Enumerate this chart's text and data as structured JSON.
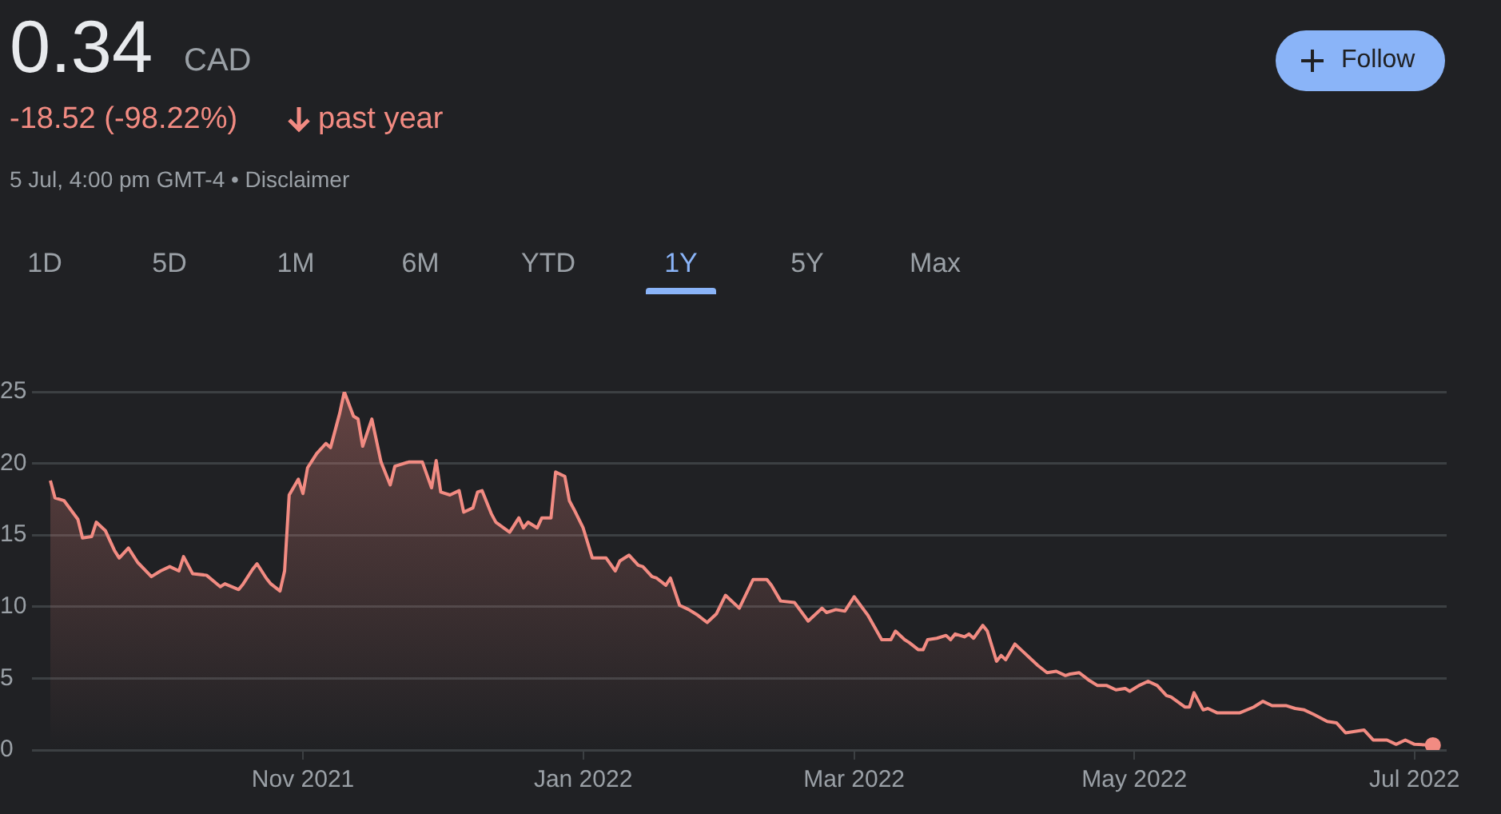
{
  "chart_data": {
    "type": "area",
    "title": "0.34",
    "annotations": [
      "CAD",
      "-18.52 (-98.22%)",
      "past year",
      "5 Jul, 4:00 pm GMT-4 • Disclaimer",
      "Follow",
      "1D",
      "5D",
      "1M",
      "6M",
      "YTD",
      "1Y",
      "5Y",
      "Max"
    ],
    "x": [
      "2021-09-07",
      "2021-09-08",
      "2021-09-10",
      "2021-09-13",
      "2021-09-14",
      "2021-09-16",
      "2021-09-17",
      "2021-09-19",
      "2021-09-21",
      "2021-09-22",
      "2021-09-24",
      "2021-09-26",
      "2021-09-29",
      "2021-10-01",
      "2021-10-03",
      "2021-10-05",
      "2021-10-06",
      "2021-10-08",
      "2021-10-11",
      "2021-10-14",
      "2021-10-15",
      "2021-10-18",
      "2021-10-19",
      "2021-10-21",
      "2021-10-22",
      "2021-10-24",
      "2021-10-25",
      "2021-10-27",
      "2021-10-28",
      "2021-10-29",
      "2021-10-31",
      "2021-11-01",
      "2021-11-02",
      "2021-11-04",
      "2021-11-06",
      "2021-11-07",
      "2021-11-09",
      "2021-11-10",
      "2021-11-12",
      "2021-11-13",
      "2021-11-14",
      "2021-11-16",
      "2021-11-18",
      "2021-11-20",
      "2021-11-21",
      "2021-11-24",
      "2021-11-27",
      "2021-11-29",
      "2021-11-30",
      "2021-12-01",
      "2021-12-03",
      "2021-12-05",
      "2021-12-06",
      "2021-12-08",
      "2021-12-09",
      "2021-12-10",
      "2021-12-12",
      "2021-12-13",
      "2021-12-16",
      "2021-12-18",
      "2021-12-19",
      "2021-12-20",
      "2021-12-22",
      "2021-12-23",
      "2021-12-25",
      "2021-12-26",
      "2021-12-28",
      "2021-12-29",
      "2021-12-30",
      "2022-01-01",
      "2022-01-03",
      "2022-01-06",
      "2022-01-08",
      "2022-01-09",
      "2022-01-11",
      "2022-01-13",
      "2022-01-14",
      "2022-01-16",
      "2022-01-17",
      "2022-01-19",
      "2022-01-20",
      "2022-01-22",
      "2022-01-24",
      "2022-01-26",
      "2022-01-28",
      "2022-01-30",
      "2022-02-01",
      "2022-02-04",
      "2022-02-07",
      "2022-02-09",
      "2022-02-10",
      "2022-02-11",
      "2022-02-13",
      "2022-02-16",
      "2022-02-19",
      "2022-02-22",
      "2022-02-23",
      "2022-02-25",
      "2022-02-27",
      "2022-03-01",
      "2022-03-04",
      "2022-03-07",
      "2022-03-09",
      "2022-03-10",
      "2022-03-12",
      "2022-03-13",
      "2022-03-15",
      "2022-03-16",
      "2022-03-17",
      "2022-03-19",
      "2022-03-21",
      "2022-03-22",
      "2022-03-23",
      "2022-03-25",
      "2022-03-26",
      "2022-03-27",
      "2022-03-29",
      "2022-03-30",
      "2022-04-01",
      "2022-04-02",
      "2022-04-03",
      "2022-04-05",
      "2022-04-07",
      "2022-04-08",
      "2022-04-10",
      "2022-04-12",
      "2022-04-14",
      "2022-04-16",
      "2022-04-17",
      "2022-04-19",
      "2022-04-21",
      "2022-04-23",
      "2022-04-25",
      "2022-04-27",
      "2022-04-29",
      "2022-04-30",
      "2022-05-02",
      "2022-05-04",
      "2022-05-06",
      "2022-05-08",
      "2022-05-09",
      "2022-05-12",
      "2022-05-13",
      "2022-05-14",
      "2022-05-16",
      "2022-05-17",
      "2022-05-19",
      "2022-05-24",
      "2022-05-27",
      "2022-05-29",
      "2022-05-31",
      "2022-06-03",
      "2022-06-05",
      "2022-06-07",
      "2022-06-09",
      "2022-06-12",
      "2022-06-14",
      "2022-06-16",
      "2022-06-20",
      "2022-06-22",
      "2022-06-25",
      "2022-06-27",
      "2022-06-29",
      "2022-07-01",
      "2022-07-05"
    ],
    "series": [
      {
        "color": "#f28b82",
        "values": [
          18.8,
          17.6,
          17.4,
          16.1,
          14.8,
          14.9,
          15.9,
          15.3,
          13.9,
          13.4,
          14.1,
          13.1,
          12.1,
          12.5,
          12.8,
          12.5,
          13.5,
          12.3,
          12.2,
          11.4,
          11.6,
          11.2,
          11.6,
          12.6,
          13.0,
          12.0,
          11.6,
          11.1,
          12.5,
          17.8,
          18.9,
          17.9,
          19.7,
          20.7,
          21.4,
          21.1,
          23.5,
          25,
          23.3,
          23.1,
          21.2,
          23.1,
          20.1,
          18.5,
          19.8,
          20.1,
          20.1,
          18.3,
          20.2,
          18.0,
          17.8,
          18.1,
          16.6,
          16.9,
          18.0,
          18.1,
          16.5,
          15.9,
          15.2,
          16.2,
          15.5,
          15.9,
          15.5,
          16.2,
          16.2,
          19.4,
          19.1,
          17.4,
          16.8,
          15.5,
          13.4,
          13.4,
          12.5,
          13.2,
          13.6,
          12.9,
          12.8,
          12.1,
          12.0,
          11.5,
          12.0,
          10.1,
          9.8,
          9.4,
          8.9,
          9.5,
          10.8,
          9.9,
          11.9,
          11.9,
          11.9,
          11.5,
          10.4,
          10.3,
          9.0,
          9.9,
          9.6,
          9.8,
          9.7,
          10.7,
          9.4,
          7.7,
          7.7,
          8.3,
          7.7,
          7.5,
          7.0,
          7.0,
          7.7,
          7.8,
          8.0,
          7.7,
          8.1,
          7.9,
          8.1,
          7.8,
          8.7,
          8.3,
          6.2,
          6.6,
          6.3,
          7.4,
          6.8,
          6.5,
          5.9,
          5.4,
          5.5,
          5.2,
          5.3,
          5.4,
          4.9,
          4.5,
          4.5,
          4.2,
          4.3,
          4.1,
          4.5,
          4.8,
          4.5,
          3.8,
          3.7,
          3.0,
          3.0,
          4.0,
          2.8,
          2.9,
          2.6,
          2.6,
          3.0,
          3.4,
          3.1,
          3.1,
          2.9,
          2.8,
          2.5,
          2.0,
          1.9,
          1.2,
          1.4,
          0.7,
          0.7,
          0.4,
          0.7,
          0.4,
          0.34
        ]
      }
    ],
    "xlim": [
      "2021-09-03",
      "2022-07-08"
    ],
    "xticks": [
      {
        "value": "2021-11-01",
        "label": "Nov 2021"
      },
      {
        "value": "2022-01-01",
        "label": "Jan 2022"
      },
      {
        "value": "2022-03-01",
        "label": "Mar 2022"
      },
      {
        "value": "2022-05-01",
        "label": "May 2022"
      },
      {
        "value": "2022-07-01",
        "label": "Jul 2022"
      }
    ],
    "ylim": [
      0,
      25
    ],
    "yticks": [
      0,
      5,
      10,
      15,
      20,
      25
    ],
    "grid": "y"
  }
}
